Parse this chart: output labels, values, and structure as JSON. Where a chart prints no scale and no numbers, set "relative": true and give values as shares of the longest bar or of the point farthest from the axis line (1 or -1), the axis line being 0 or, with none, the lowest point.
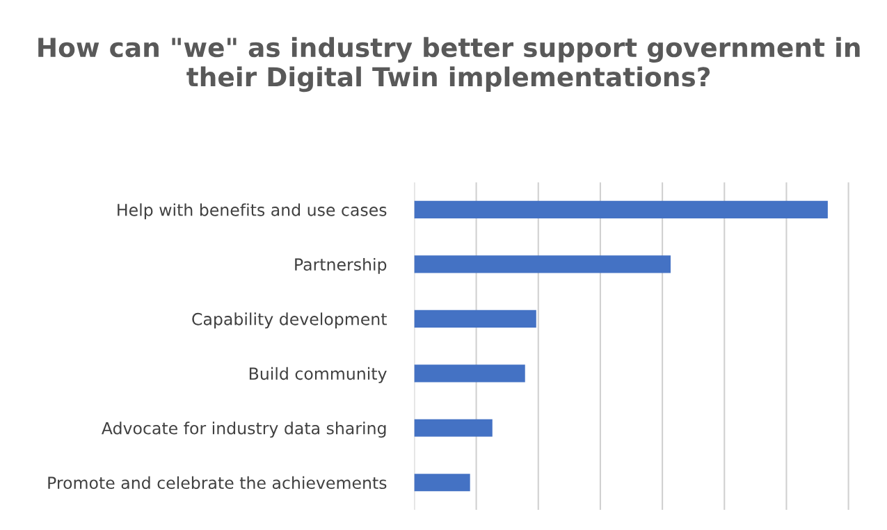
{
  "chart_data": {
    "type": "bar",
    "orientation": "horizontal",
    "relative": true,
    "title": "How can \"we\" as industry better support government in their Digital Twin implementations?",
    "categories": [
      "Help with benefits and use cases",
      "Partnership",
      "Capability development",
      "Build community",
      "Advocate for industry data sharing",
      "Promote and celebrate the achievements"
    ],
    "values": [
      1,
      0.62,
      0.295,
      0.268,
      0.189,
      0.135
    ],
    "color": "#4472c4",
    "grid": "x",
    "legend": false
  }
}
